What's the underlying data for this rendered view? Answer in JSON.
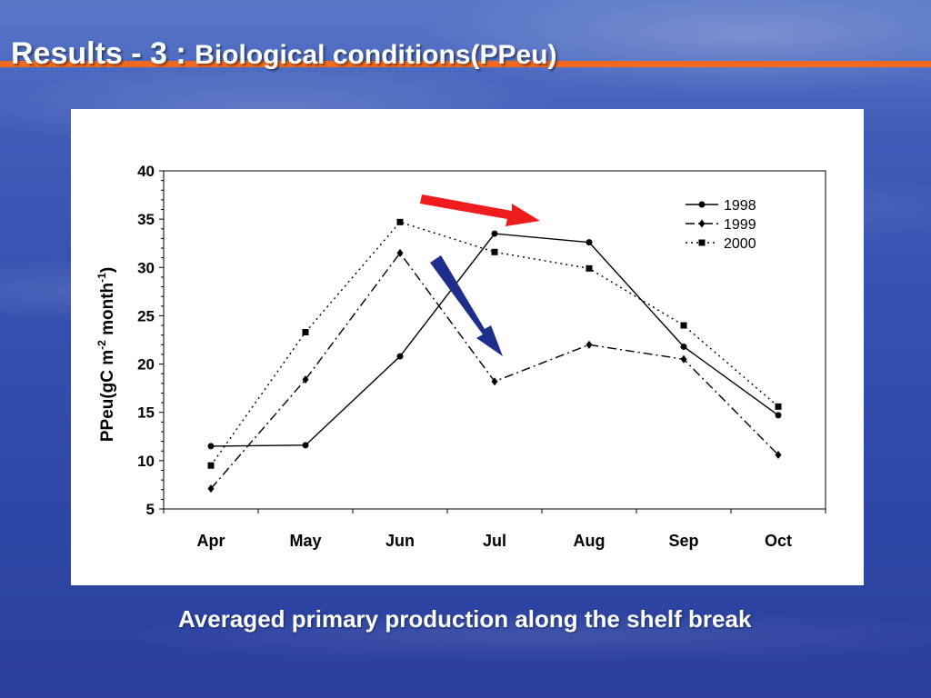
{
  "slide": {
    "title_main": "Results - 3 : ",
    "title_sub": "Biological conditions(PPeu)",
    "caption": "Averaged primary production along the shelf break"
  },
  "colors": {
    "title_bar": "#f26a21",
    "arrow_up": "#ee1c1c",
    "arrow_down": "#1f2d8c"
  },
  "chart_data": {
    "type": "line",
    "categories": [
      "Apr",
      "May",
      "Jun",
      "Jul",
      "Aug",
      "Sep",
      "Oct"
    ],
    "ylabel_main": "PPeu(gC m",
    "ylabel_sup1": "-2",
    "ylabel_mid": " month",
    "ylabel_sup2": "-1",
    "ylabel_end": ")",
    "ylim": [
      5,
      40
    ],
    "yticks": [
      5,
      10,
      15,
      20,
      25,
      30,
      35,
      40
    ],
    "grid": false,
    "legend": "top-right",
    "series": [
      {
        "name": "1998",
        "style": "solid",
        "marker": "circle",
        "values": [
          11.5,
          11.6,
          20.8,
          33.5,
          32.6,
          21.8,
          14.7
        ]
      },
      {
        "name": "1999",
        "style": "dashdot",
        "marker": "diamond",
        "values": [
          7.1,
          18.4,
          31.5,
          18.2,
          22.0,
          20.5,
          10.6
        ]
      },
      {
        "name": "2000",
        "style": "dotted",
        "marker": "square",
        "values": [
          9.5,
          23.3,
          34.7,
          31.6,
          29.9,
          24.0,
          15.6
        ]
      }
    ]
  }
}
